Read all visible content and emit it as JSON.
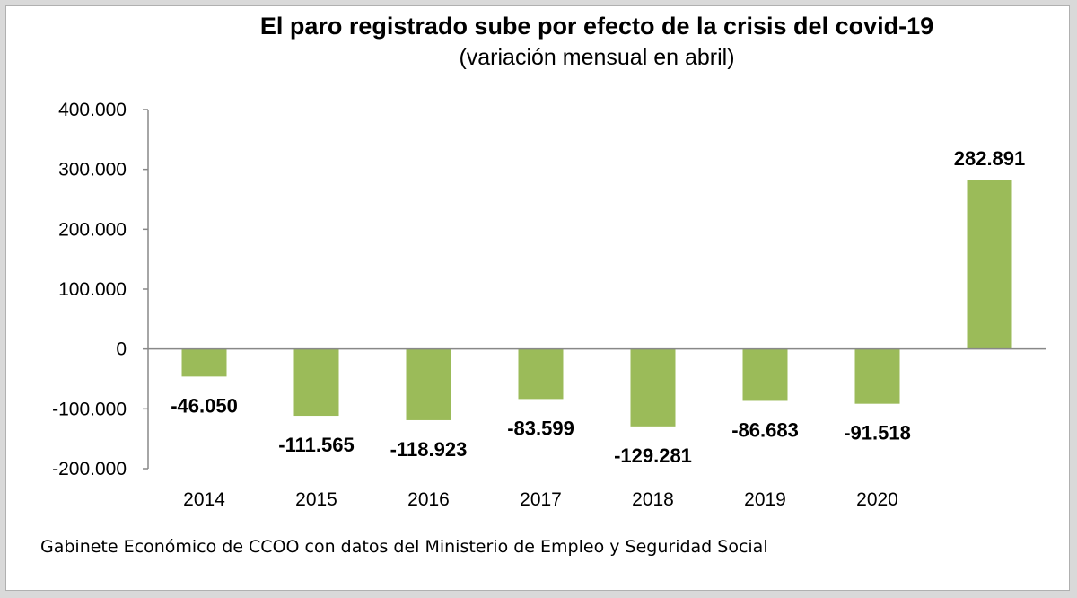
{
  "chart_data": {
    "type": "bar",
    "title": "El paro registrado sube por efecto de la crisis del covid-19",
    "subtitle": "(variación mensual en abril)",
    "categories": [
      "2014",
      "2015",
      "2016",
      "2017",
      "2018",
      "2019",
      "2020",
      ""
    ],
    "values": [
      -46050,
      -111565,
      -118923,
      -83599,
      -129281,
      -86683,
      -91518,
      282891
    ],
    "value_labels": [
      "-46.050",
      "-111.565",
      "-118.923",
      "-83.599",
      "-129.281",
      "-86.683",
      "-91.518",
      "282.891"
    ],
    "ylim": [
      -200000,
      400000
    ],
    "yticks": [
      400000,
      300000,
      200000,
      100000,
      0,
      -100000,
      -200000
    ],
    "ytick_labels": [
      "400.000",
      "300.000",
      "200.000",
      "100.000",
      "0",
      "-100.000",
      "-200.000"
    ],
    "bar_color": "#9bbb59",
    "grid": false,
    "legend": "none"
  },
  "source": "Gabinete Económico de CCOO con datos del Ministerio de Empleo y Seguridad Social"
}
